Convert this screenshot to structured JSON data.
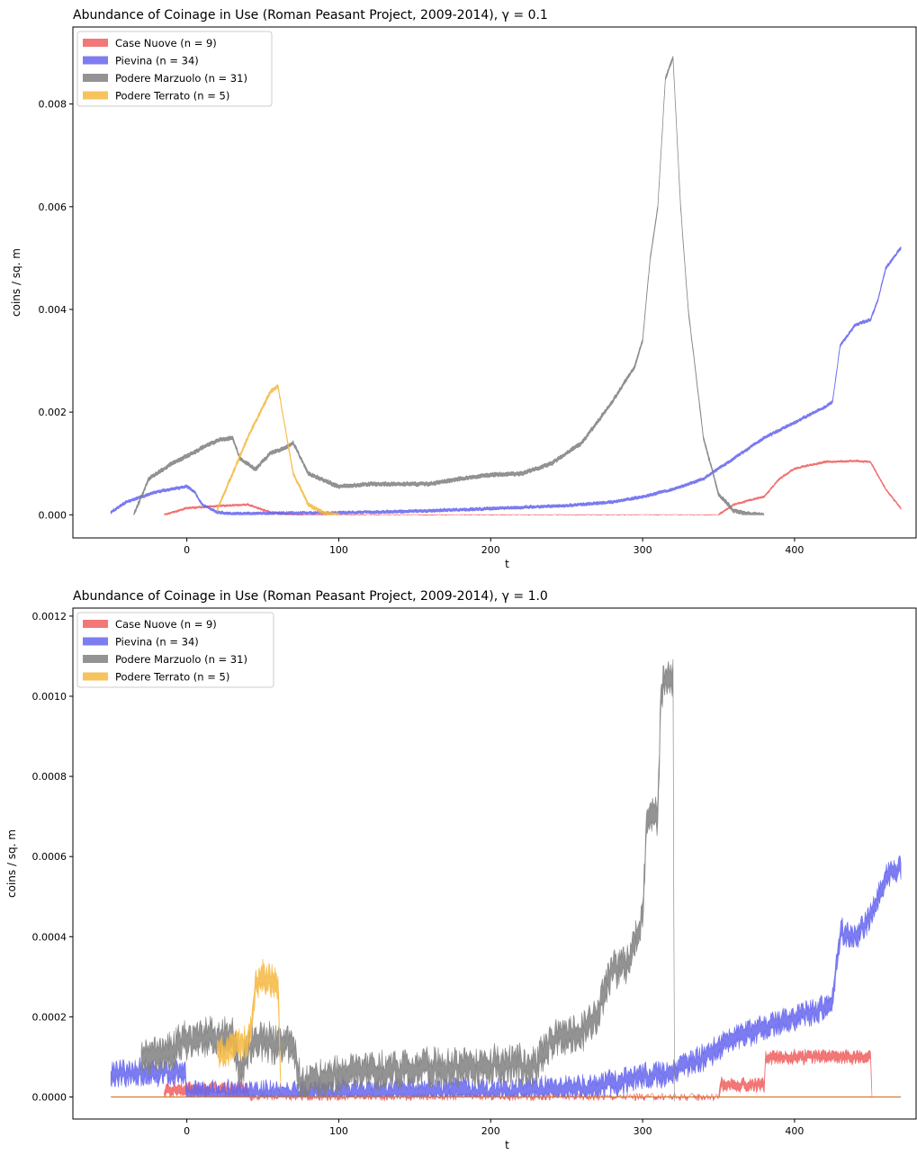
{
  "chart_data": [
    {
      "type": "area",
      "title": "Abundance of Coinage in Use (Roman Peasant Project, 2009-2014), γ = 0.1",
      "xlabel": "t",
      "ylabel": "coins / sq. m",
      "xlim": [
        -75,
        480
      ],
      "ylim": [
        -0.00045,
        0.0095
      ],
      "xticks": [
        0,
        100,
        200,
        300,
        400
      ],
      "yticks": [
        0.0,
        0.002,
        0.004,
        0.006,
        0.008
      ],
      "ytick_labels": [
        "0.000",
        "0.002",
        "0.004",
        "0.006",
        "0.008"
      ],
      "legend": "top-left",
      "series": [
        {
          "name": "Case Nuove (n = 9)",
          "color": "#f06060",
          "band": 2e-05,
          "x": [
            -15,
            0,
            20,
            40,
            55,
            70,
            90,
            350,
            360,
            375,
            380,
            390,
            400,
            420,
            440,
            450,
            460,
            470
          ],
          "y": [
            0,
            0.00013,
            0.00017,
            0.0002,
            5e-05,
            0.0,
            0.0,
            0.0,
            0.0002,
            0.00032,
            0.00035,
            0.0007,
            0.0009,
            0.00103,
            0.00105,
            0.00103,
            0.0005,
            0.00012
          ]
        },
        {
          "name": "Pievina (n = 34)",
          "color": "#6666ee",
          "band": 3e-05,
          "x": [
            -50,
            -40,
            -20,
            -10,
            0,
            5,
            10,
            20,
            30,
            60,
            100,
            150,
            200,
            250,
            280,
            300,
            320,
            340,
            360,
            380,
            400,
            420,
            425,
            430,
            440,
            450,
            455,
            460,
            470
          ],
          "y": [
            5e-05,
            0.00025,
            0.00045,
            0.0005,
            0.00055,
            0.00045,
            0.0002,
            5e-05,
            2e-05,
            3e-05,
            4e-05,
            7e-05,
            0.00012,
            0.00018,
            0.00025,
            0.00035,
            0.0005,
            0.0007,
            0.0011,
            0.0015,
            0.0018,
            0.0021,
            0.0022,
            0.0033,
            0.0037,
            0.0038,
            0.0042,
            0.0048,
            0.0052
          ]
        },
        {
          "name": "Podere Marzuolo (n = 31)",
          "color": "#808080",
          "band": 4e-05,
          "x": [
            -35,
            -25,
            -10,
            10,
            20,
            30,
            35,
            45,
            55,
            65,
            70,
            80,
            100,
            120,
            140,
            160,
            180,
            200,
            220,
            240,
            260,
            280,
            295,
            300,
            305,
            310,
            315,
            320,
            325,
            330,
            340,
            350,
            360,
            370,
            380
          ],
          "y": [
            0,
            0.0007,
            0.001,
            0.0013,
            0.00145,
            0.0015,
            0.0011,
            0.00088,
            0.0012,
            0.0013,
            0.0014,
            0.0008,
            0.00055,
            0.0006,
            0.0006,
            0.0006,
            0.0007,
            0.00078,
            0.0008,
            0.001,
            0.0014,
            0.0022,
            0.0029,
            0.0034,
            0.005,
            0.006,
            0.0085,
            0.0089,
            0.006,
            0.004,
            0.0015,
            0.0004,
            8e-05,
            2e-05,
            0.0
          ]
        },
        {
          "name": "Podere Terrato (n = 5)",
          "color": "#f5b942",
          "band": 4e-05,
          "x": [
            20,
            30,
            40,
            50,
            55,
            60,
            70,
            80,
            90,
            100
          ],
          "y": [
            0.0001,
            0.0008,
            0.0015,
            0.0021,
            0.0024,
            0.0025,
            0.0008,
            0.0002,
            3e-05,
            0.0
          ]
        }
      ]
    },
    {
      "type": "area",
      "title": "Abundance of Coinage in Use (Roman Peasant Project, 2009-2014), γ = 1.0",
      "xlabel": "t",
      "ylabel": "coins / sq. m",
      "xlim": [
        -75,
        480
      ],
      "ylim": [
        -5.5e-05,
        0.00122
      ],
      "xticks": [
        0,
        100,
        200,
        300,
        400
      ],
      "yticks": [
        0.0,
        0.0002,
        0.0004,
        0.0006,
        0.0008,
        0.001,
        0.0012
      ],
      "ytick_labels": [
        "0.0000",
        "0.0002",
        "0.0004",
        "0.0006",
        "0.0008",
        "0.0010",
        "0.0012"
      ],
      "legend": "top-left",
      "series": [
        {
          "name": "Case Nuove (n = 9)",
          "color": "#f06060",
          "band": 1.2e-05,
          "x": [
            -15,
            -14,
            40,
            41,
            350,
            351,
            380,
            381,
            450,
            451
          ],
          "y": [
            0,
            2e-05,
            2e-05,
            0,
            0,
            3e-05,
            3e-05,
            0.0001,
            0.0001,
            0
          ]
        },
        {
          "name": "Pievina (n = 34)",
          "color": "#6666ee",
          "band": 2.2e-05,
          "x": [
            -50,
            -1,
            0,
            100,
            200,
            260,
            290,
            300,
            320,
            340,
            360,
            380,
            400,
            420,
            425,
            430,
            440,
            450,
            460,
            470
          ],
          "y": [
            6e-05,
            6e-05,
            5e-06,
            8e-06,
            1.5e-05,
            2e-05,
            4e-05,
            5e-05,
            6e-05,
            0.0001,
            0.00015,
            0.00017,
            0.0002,
            0.00022,
            0.00024,
            0.00041,
            0.0004,
            0.00045,
            0.00055,
            0.00057
          ]
        },
        {
          "name": "Podere Marzuolo (n = 31)",
          "color": "#808080",
          "band": 3.2e-05,
          "x": [
            -30,
            -20,
            -10,
            0,
            10,
            20,
            30,
            35,
            40,
            45,
            50,
            60,
            65,
            70,
            75,
            100,
            150,
            200,
            230,
            240,
            260,
            270,
            280,
            290,
            300,
            303,
            305,
            310,
            312,
            315,
            320,
            321
          ],
          "y": [
            0.0001,
            0.0001,
            0.00012,
            0.00014,
            0.00015,
            0.00015,
            0.00015,
            6e-05,
            0.00011,
            0.00015,
            0.00014,
            0.00013,
            0.00014,
            0.00013,
            3e-05,
            6e-05,
            7e-05,
            8e-05,
            8e-05,
            0.00014,
            0.00016,
            0.00021,
            0.00032,
            0.00033,
            0.00045,
            0.0007,
            0.00072,
            0.0007,
            0.001,
            0.00105,
            0.00105,
            0
          ]
        },
        {
          "name": "Podere Terrato (n = 5)",
          "color": "#f5b942",
          "band": 2.8e-05,
          "x": [
            20,
            30,
            35,
            40,
            42,
            45,
            50,
            55,
            60,
            62
          ],
          "y": [
            0.00012,
            0.00012,
            0.00013,
            0.00014,
            0.00016,
            0.00028,
            0.0003,
            0.00029,
            0.00028,
            0
          ]
        }
      ]
    }
  ]
}
